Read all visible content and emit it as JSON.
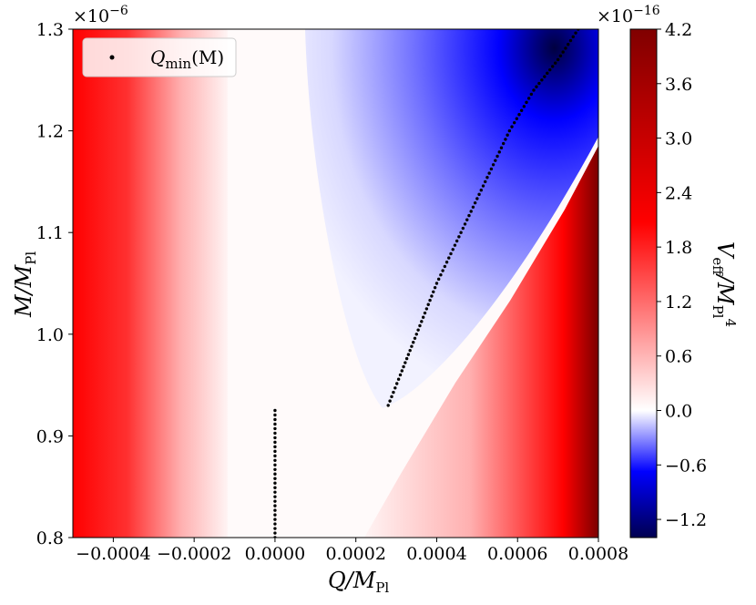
{
  "chart_data": {
    "type": "heatmap",
    "title": "",
    "xlabel": {
      "main": "Q/M",
      "sub": "Pl"
    },
    "ylabel": {
      "main": "M/M",
      "sub": "Pl"
    },
    "colorbar_label": {
      "main": "V",
      "sub1": "eff",
      "mid": "/M",
      "sub2": "Pl",
      "sup": "4"
    },
    "xlim": [
      -0.0005,
      0.0008
    ],
    "ylim": [
      0.8,
      1.3
    ],
    "y_multiplier": "×10",
    "y_multiplier_exp": "−6",
    "colorbar_multiplier": "×10",
    "colorbar_multiplier_exp": "−16",
    "colorbar_range": [
      -1.4,
      4.2
    ],
    "x_ticks": [
      {
        "value": -0.0004,
        "label": "−0.0004"
      },
      {
        "value": -0.0002,
        "label": "−0.0002"
      },
      {
        "value": 0.0,
        "label": "0.0000"
      },
      {
        "value": 0.0002,
        "label": "0.0002"
      },
      {
        "value": 0.0004,
        "label": "0.0004"
      },
      {
        "value": 0.0006,
        "label": "0.0006"
      },
      {
        "value": 0.0008,
        "label": "0.0008"
      }
    ],
    "y_ticks": [
      {
        "value": 0.8,
        "label": "0.8"
      },
      {
        "value": 0.9,
        "label": "0.9"
      },
      {
        "value": 1.0,
        "label": "1.0"
      },
      {
        "value": 1.1,
        "label": "1.1"
      },
      {
        "value": 1.2,
        "label": "1.2"
      },
      {
        "value": 1.3,
        "label": "1.3"
      }
    ],
    "colorbar_ticks": [
      {
        "value": 4.2,
        "label": "4.2"
      },
      {
        "value": 3.6,
        "label": "3.6"
      },
      {
        "value": 3.0,
        "label": "3.0"
      },
      {
        "value": 2.4,
        "label": "2.4"
      },
      {
        "value": 1.8,
        "label": "1.8"
      },
      {
        "value": 1.2,
        "label": "1.2"
      },
      {
        "value": 0.6,
        "label": "0.6"
      },
      {
        "value": 0.0,
        "label": "0.0"
      },
      {
        "value": -0.6,
        "label": "−0.6"
      },
      {
        "value": -1.2,
        "label": "−1.2"
      }
    ],
    "legend": {
      "position": "top-left",
      "entry": {
        "main": "Q",
        "sub": "min",
        "arg": "(M)"
      }
    },
    "colormap": {
      "low": "#000050",
      "mid_low": "#0000ff",
      "zero": "#ffffff",
      "mid_high": "#ff0000",
      "high": "#800000"
    },
    "series": [
      {
        "points_style": "black dotted",
        "segments": [
          {
            "x": [
              0.0,
              0.0
            ],
            "y": [
              0.8,
              0.925
            ]
          },
          {
            "x": [
              0.00028,
              0.00031,
              0.00035,
              0.0004,
              0.00046,
              0.00052,
              0.00058,
              0.00064,
              0.0007,
              0.00075
            ],
            "y": [
              0.93,
              0.96,
              1.0,
              1.05,
              1.1,
              1.15,
              1.2,
              1.24,
              1.27,
              1.3
            ]
          }
        ]
      }
    ]
  }
}
